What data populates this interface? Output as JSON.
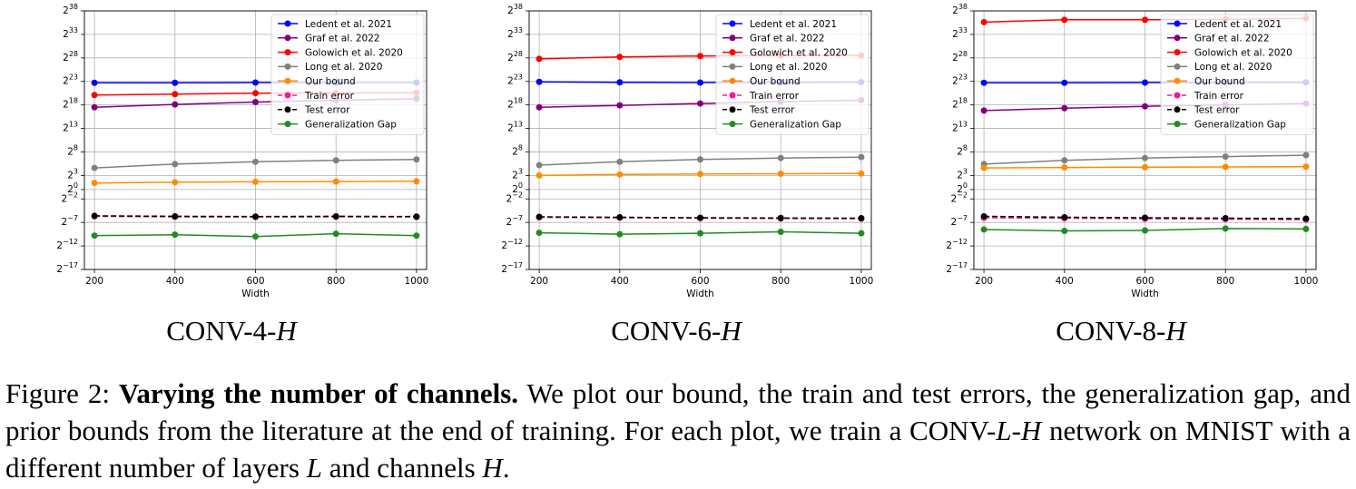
{
  "panels": [
    {
      "title_prefix": "CONV-4-",
      "title_var": "H"
    },
    {
      "title_prefix": "CONV-6-",
      "title_var": "H"
    },
    {
      "title_prefix": "CONV-8-",
      "title_var": "H"
    }
  ],
  "caption": {
    "label": "Figure 2:",
    "bold": "Varying the number of channels.",
    "t1": "We plot our bound, the train and test errors, the generalization gap, and prior bounds from the literature at the end of training. For each plot, we train a CONV-",
    "v1": "L",
    "t2": "-",
    "v2": "H",
    "t3": " network on MNIST with a different number of layers ",
    "v3": "L",
    "t4": " and channels ",
    "v4": "H",
    "t5": "."
  },
  "chart_data": [
    {
      "type": "line",
      "title": "CONV-4-H",
      "xlabel": "Width",
      "ylabel": "",
      "y_scale": "log2",
      "xlim": [
        175,
        1025
      ],
      "ylim_exp": [
        -17,
        38
      ],
      "x_ticks": [
        200,
        400,
        600,
        800,
        1000
      ],
      "y_ticks": [
        {
          "base": "2",
          "exp": "38",
          "e": 38
        },
        {
          "base": "2",
          "exp": "33",
          "e": 33
        },
        {
          "base": "2",
          "exp": "28",
          "e": 28
        },
        {
          "base": "2",
          "exp": "23",
          "e": 23
        },
        {
          "base": "2",
          "exp": "18",
          "e": 18
        },
        {
          "base": "2",
          "exp": "13",
          "e": 13
        },
        {
          "base": "2",
          "exp": "8",
          "e": 8
        },
        {
          "base": "2",
          "exp": "3",
          "e": 3
        },
        {
          "base": "2",
          "exp": "0",
          "e": 0
        },
        {
          "base": "2",
          "exp": "−2",
          "e": -2
        },
        {
          "base": "2",
          "exp": "−7",
          "e": -7
        },
        {
          "base": "2",
          "exp": "−12",
          "e": -12
        },
        {
          "base": "2",
          "exp": "−17",
          "e": -17
        }
      ],
      "grid": true,
      "legend_position": "top-right",
      "x": [
        200,
        400,
        600,
        800,
        1000
      ],
      "series": [
        {
          "name": "Ledent et al. 2021",
          "color": "#0000ff",
          "style": "solid",
          "log2_values": [
            22.7,
            22.7,
            22.75,
            22.75,
            22.75
          ]
        },
        {
          "name": "Graf et al. 2022",
          "color": "#800080",
          "style": "solid",
          "log2_values": [
            17.5,
            18.1,
            18.6,
            19.0,
            19.3
          ]
        },
        {
          "name": "Golowich et al. 2020",
          "color": "#ff0000",
          "style": "solid",
          "log2_values": [
            20.1,
            20.3,
            20.5,
            20.55,
            20.6
          ]
        },
        {
          "name": "Long et al. 2020",
          "color": "#808080",
          "style": "solid",
          "log2_values": [
            4.6,
            5.4,
            5.9,
            6.2,
            6.4
          ]
        },
        {
          "name": "Our bound",
          "color": "#ff8c00",
          "style": "solid",
          "log2_values": [
            1.4,
            1.55,
            1.65,
            1.7,
            1.75
          ]
        },
        {
          "name": "Train error",
          "color": "#ff1493",
          "style": "dashed",
          "log2_values": [
            -5.7,
            -5.8,
            -5.85,
            -5.8,
            -5.85
          ]
        },
        {
          "name": "Test error",
          "color": "#000000",
          "style": "dashed",
          "log2_values": [
            -5.6,
            -5.7,
            -5.75,
            -5.7,
            -5.75
          ]
        },
        {
          "name": "Generalization Gap",
          "color": "#228b22",
          "style": "solid",
          "log2_values": [
            -9.8,
            -9.6,
            -10.0,
            -9.4,
            -9.8
          ]
        }
      ]
    },
    {
      "type": "line",
      "title": "CONV-6-H",
      "xlabel": "Width",
      "ylabel": "",
      "y_scale": "log2",
      "xlim": [
        175,
        1025
      ],
      "ylim_exp": [
        -17,
        38
      ],
      "x_ticks": [
        200,
        400,
        600,
        800,
        1000
      ],
      "y_ticks": [
        {
          "base": "2",
          "exp": "38",
          "e": 38
        },
        {
          "base": "2",
          "exp": "33",
          "e": 33
        },
        {
          "base": "2",
          "exp": "28",
          "e": 28
        },
        {
          "base": "2",
          "exp": "23",
          "e": 23
        },
        {
          "base": "2",
          "exp": "18",
          "e": 18
        },
        {
          "base": "2",
          "exp": "13",
          "e": 13
        },
        {
          "base": "2",
          "exp": "8",
          "e": 8
        },
        {
          "base": "2",
          "exp": "3",
          "e": 3
        },
        {
          "base": "2",
          "exp": "0",
          "e": 0
        },
        {
          "base": "2",
          "exp": "−2",
          "e": -2
        },
        {
          "base": "2",
          "exp": "−7",
          "e": -7
        },
        {
          "base": "2",
          "exp": "−12",
          "e": -12
        },
        {
          "base": "2",
          "exp": "−17",
          "e": -17
        }
      ],
      "grid": true,
      "legend_position": "top-right",
      "x": [
        200,
        400,
        600,
        800,
        1000
      ],
      "series": [
        {
          "name": "Ledent et al. 2021",
          "color": "#0000ff",
          "style": "solid",
          "log2_values": [
            22.9,
            22.8,
            22.75,
            22.8,
            22.85
          ]
        },
        {
          "name": "Graf et al. 2022",
          "color": "#800080",
          "style": "solid",
          "log2_values": [
            17.5,
            17.9,
            18.3,
            18.7,
            19.0
          ]
        },
        {
          "name": "Golowich et al. 2020",
          "color": "#ff0000",
          "style": "solid",
          "log2_values": [
            27.8,
            28.2,
            28.4,
            28.5,
            28.55
          ]
        },
        {
          "name": "Long et al. 2020",
          "color": "#808080",
          "style": "solid",
          "log2_values": [
            5.2,
            5.9,
            6.4,
            6.7,
            6.9
          ]
        },
        {
          "name": "Our bound",
          "color": "#ff8c00",
          "style": "solid",
          "log2_values": [
            3.0,
            3.2,
            3.3,
            3.35,
            3.4
          ]
        },
        {
          "name": "Train error",
          "color": "#ff1493",
          "style": "dashed",
          "log2_values": [
            -5.9,
            -6.0,
            -6.1,
            -6.15,
            -6.2
          ]
        },
        {
          "name": "Test error",
          "color": "#000000",
          "style": "dashed",
          "log2_values": [
            -5.8,
            -5.9,
            -6.0,
            -6.05,
            -6.1
          ]
        },
        {
          "name": "Generalization Gap",
          "color": "#228b22",
          "style": "solid",
          "log2_values": [
            -9.2,
            -9.5,
            -9.3,
            -9.0,
            -9.3
          ]
        }
      ]
    },
    {
      "type": "line",
      "title": "CONV-8-H",
      "xlabel": "Width",
      "ylabel": "",
      "y_scale": "log2",
      "xlim": [
        175,
        1025
      ],
      "ylim_exp": [
        -17,
        38
      ],
      "x_ticks": [
        200,
        400,
        600,
        800,
        1000
      ],
      "y_ticks": [
        {
          "base": "2",
          "exp": "38",
          "e": 38
        },
        {
          "base": "2",
          "exp": "33",
          "e": 33
        },
        {
          "base": "2",
          "exp": "28",
          "e": 28
        },
        {
          "base": "2",
          "exp": "23",
          "e": 23
        },
        {
          "base": "2",
          "exp": "18",
          "e": 18
        },
        {
          "base": "2",
          "exp": "13",
          "e": 13
        },
        {
          "base": "2",
          "exp": "8",
          "e": 8
        },
        {
          "base": "2",
          "exp": "3",
          "e": 3
        },
        {
          "base": "2",
          "exp": "0",
          "e": 0
        },
        {
          "base": "2",
          "exp": "−2",
          "e": -2
        },
        {
          "base": "2",
          "exp": "−7",
          "e": -7
        },
        {
          "base": "2",
          "exp": "−12",
          "e": -12
        },
        {
          "base": "2",
          "exp": "−17",
          "e": -17
        }
      ],
      "grid": true,
      "legend_position": "top-right",
      "x": [
        200,
        400,
        600,
        800,
        1000
      ],
      "series": [
        {
          "name": "Ledent et al. 2021",
          "color": "#0000ff",
          "style": "solid",
          "log2_values": [
            22.7,
            22.7,
            22.75,
            22.75,
            22.8
          ]
        },
        {
          "name": "Graf et al. 2022",
          "color": "#800080",
          "style": "solid",
          "log2_values": [
            16.8,
            17.3,
            17.7,
            18.0,
            18.3
          ]
        },
        {
          "name": "Golowich et al. 2020",
          "color": "#ff0000",
          "style": "solid",
          "log2_values": [
            35.6,
            36.1,
            36.1,
            36.2,
            36.4
          ]
        },
        {
          "name": "Long et al. 2020",
          "color": "#808080",
          "style": "solid",
          "log2_values": [
            5.4,
            6.2,
            6.7,
            7.0,
            7.3
          ]
        },
        {
          "name": "Our bound",
          "color": "#ff8c00",
          "style": "solid",
          "log2_values": [
            4.6,
            4.7,
            4.75,
            4.8,
            4.85
          ]
        },
        {
          "name": "Train error",
          "color": "#ff1493",
          "style": "dashed",
          "log2_values": [
            -6.0,
            -6.1,
            -6.2,
            -6.3,
            -6.4
          ]
        },
        {
          "name": "Test error",
          "color": "#000000",
          "style": "dashed",
          "log2_values": [
            -5.7,
            -5.9,
            -6.0,
            -6.1,
            -6.2
          ]
        },
        {
          "name": "Generalization Gap",
          "color": "#228b22",
          "style": "solid",
          "log2_values": [
            -8.5,
            -8.8,
            -8.7,
            -8.3,
            -8.4
          ]
        }
      ]
    }
  ]
}
